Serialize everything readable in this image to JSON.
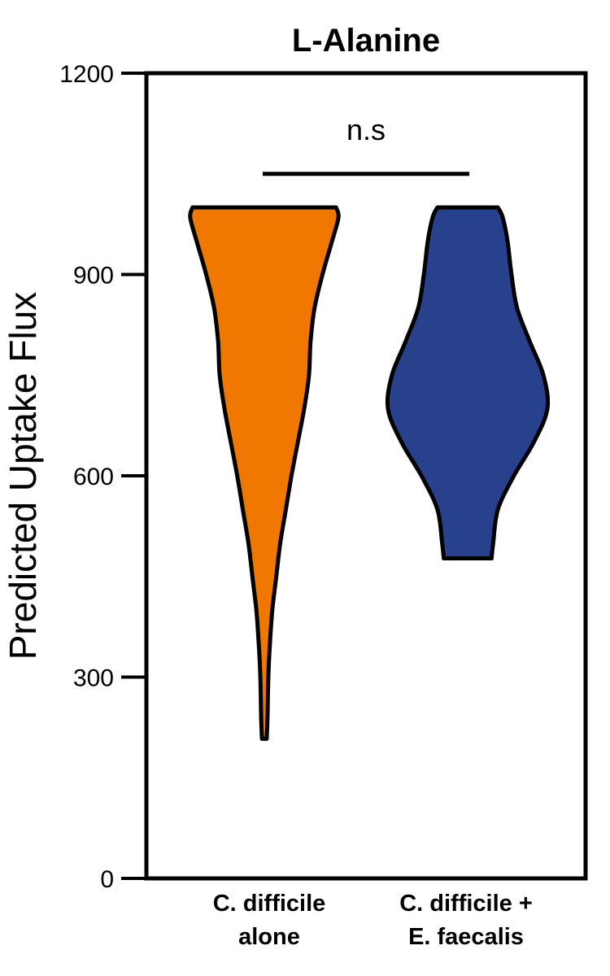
{
  "chart_data": {
    "type": "violin",
    "title": "L-Alanine",
    "ylabel": "Predicted Uptake Flux",
    "xlabel": "",
    "ylim": [
      0,
      1200
    ],
    "yticks": [
      0,
      300,
      600,
      900,
      1200
    ],
    "ytick_labels": [
      "0",
      "300",
      "600",
      "900",
      "1200"
    ],
    "grid": false,
    "categories": [
      [
        "C. difficile",
        "alone"
      ],
      [
        "C. difficile +",
        "E. faecalis"
      ]
    ],
    "series": [
      {
        "color": "#F07800",
        "min": 208,
        "max": 1000,
        "density_profile": [
          [
            208,
            3
          ],
          [
            240,
            4
          ],
          [
            300,
            5
          ],
          [
            350,
            7
          ],
          [
            400,
            10
          ],
          [
            450,
            15
          ],
          [
            500,
            20
          ],
          [
            550,
            27
          ],
          [
            600,
            34
          ],
          [
            650,
            42
          ],
          [
            700,
            50
          ],
          [
            750,
            56
          ],
          [
            800,
            58
          ],
          [
            850,
            63
          ],
          [
            900,
            73
          ],
          [
            950,
            85
          ],
          [
            985,
            93
          ],
          [
            1000,
            90
          ]
        ]
      },
      {
        "color": "#28418C",
        "min": 477,
        "max": 1000,
        "density_profile": [
          [
            477,
            30
          ],
          [
            500,
            32
          ],
          [
            550,
            38
          ],
          [
            600,
            58
          ],
          [
            650,
            83
          ],
          [
            700,
            100
          ],
          [
            750,
            95
          ],
          [
            800,
            78
          ],
          [
            850,
            62
          ],
          [
            900,
            55
          ],
          [
            950,
            50
          ],
          [
            985,
            44
          ],
          [
            1000,
            38
          ]
        ]
      }
    ],
    "significance": {
      "label": "n.s",
      "y": 1050
    }
  }
}
